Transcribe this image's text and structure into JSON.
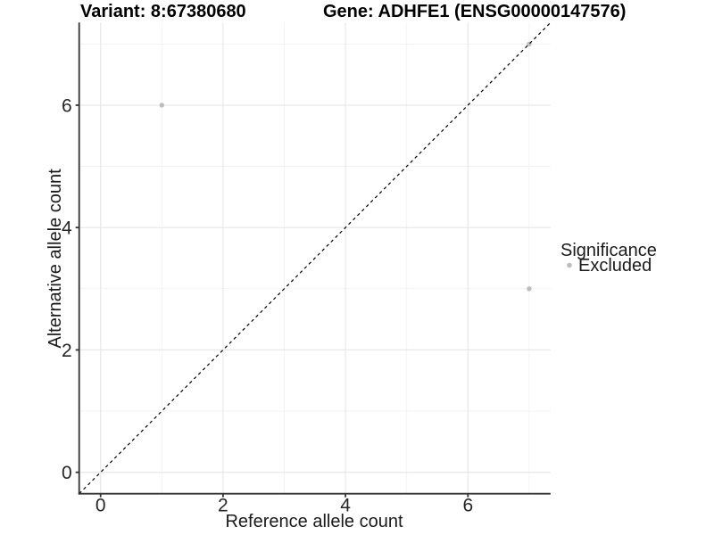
{
  "chart_data": {
    "type": "scatter",
    "title_left": "Variant: 8:67380680",
    "title_right": "Gene: ADHFE1 (ENSG00000147576)",
    "xlabel": "Reference allele count",
    "ylabel": "Alternative allele count",
    "xlim": [
      -0.35,
      7.35
    ],
    "ylim": [
      -0.35,
      7.35
    ],
    "x_ticks": [
      0,
      2,
      4,
      6
    ],
    "y_ticks": [
      0,
      2,
      4,
      6
    ],
    "x_minor_gridlines": [
      1,
      3,
      5,
      7
    ],
    "y_minor_gridlines": [
      1,
      3,
      5,
      7
    ],
    "grid": "on",
    "reference_line": {
      "type": "identity",
      "slope": 1,
      "intercept": 0,
      "style": "dashed",
      "color": "#000000"
    },
    "series": [
      {
        "name": "Excluded",
        "color": "#bdbdbd",
        "points": [
          {
            "x": 1,
            "y": 6
          },
          {
            "x": 7,
            "y": 7
          },
          {
            "x": 7,
            "y": 3
          }
        ]
      }
    ],
    "legend": {
      "title": "Significance",
      "position": "right",
      "items": [
        {
          "label": "Excluded",
          "color": "#bdbdbd",
          "marker": "circle"
        }
      ]
    },
    "colors": {
      "background": "#ffffff",
      "grid_major": "#e6e6e6",
      "grid_minor": "#f1f1f1",
      "axis_line": "#333333",
      "point": "#bdbdbd",
      "text": "#000000"
    }
  }
}
